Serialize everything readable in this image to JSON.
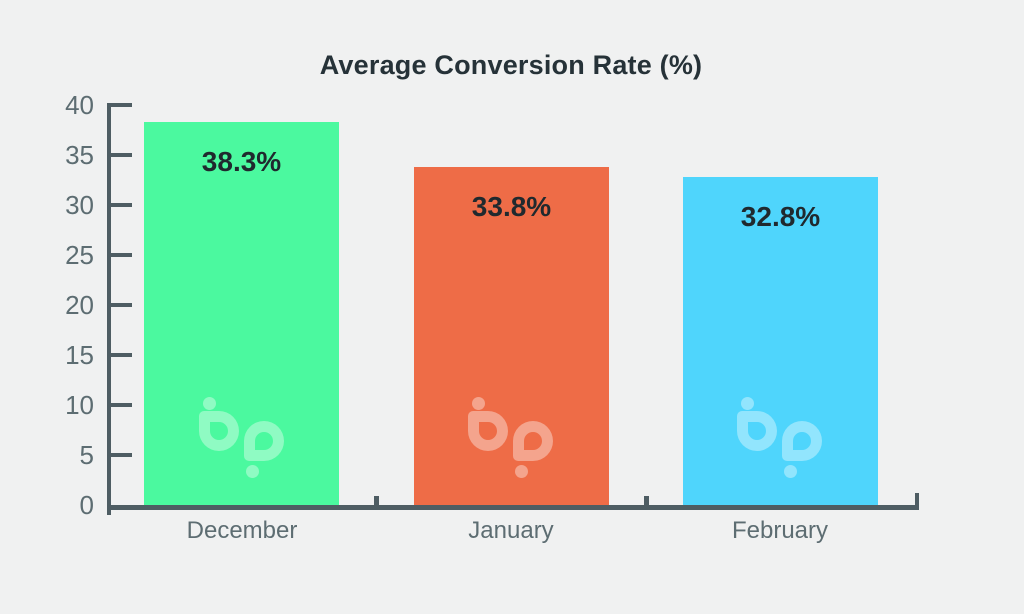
{
  "page": {
    "background": "#f0f1f1"
  },
  "colors": {
    "background": "#f0f1f1",
    "axis": "#4e5d63",
    "tick_label": "#5d6d72",
    "category_label": "#5d6d72",
    "title": "#263238",
    "value_label": "#20292e",
    "watermark": "rgba(255,255,255,0.38)"
  },
  "chart_data": {
    "type": "bar",
    "title": "Average Conversion Rate (%)",
    "categories": [
      "December",
      "January",
      "February"
    ],
    "values": [
      38.3,
      33.8,
      32.8
    ],
    "value_labels": [
      "38.3%",
      "33.8%",
      "32.8%"
    ],
    "bar_colors": [
      "#4BF99F",
      "#EE6C47",
      "#4FD5FC"
    ],
    "ylim": [
      0,
      40
    ],
    "ytick_step": 5,
    "ytick_labels": [
      "0",
      "5",
      "10",
      "15",
      "20",
      "25",
      "30",
      "35",
      "40"
    ],
    "xlabel": "",
    "ylabel": "",
    "grid": false,
    "legend": "none",
    "watermark_icon": "bp-logo"
  }
}
